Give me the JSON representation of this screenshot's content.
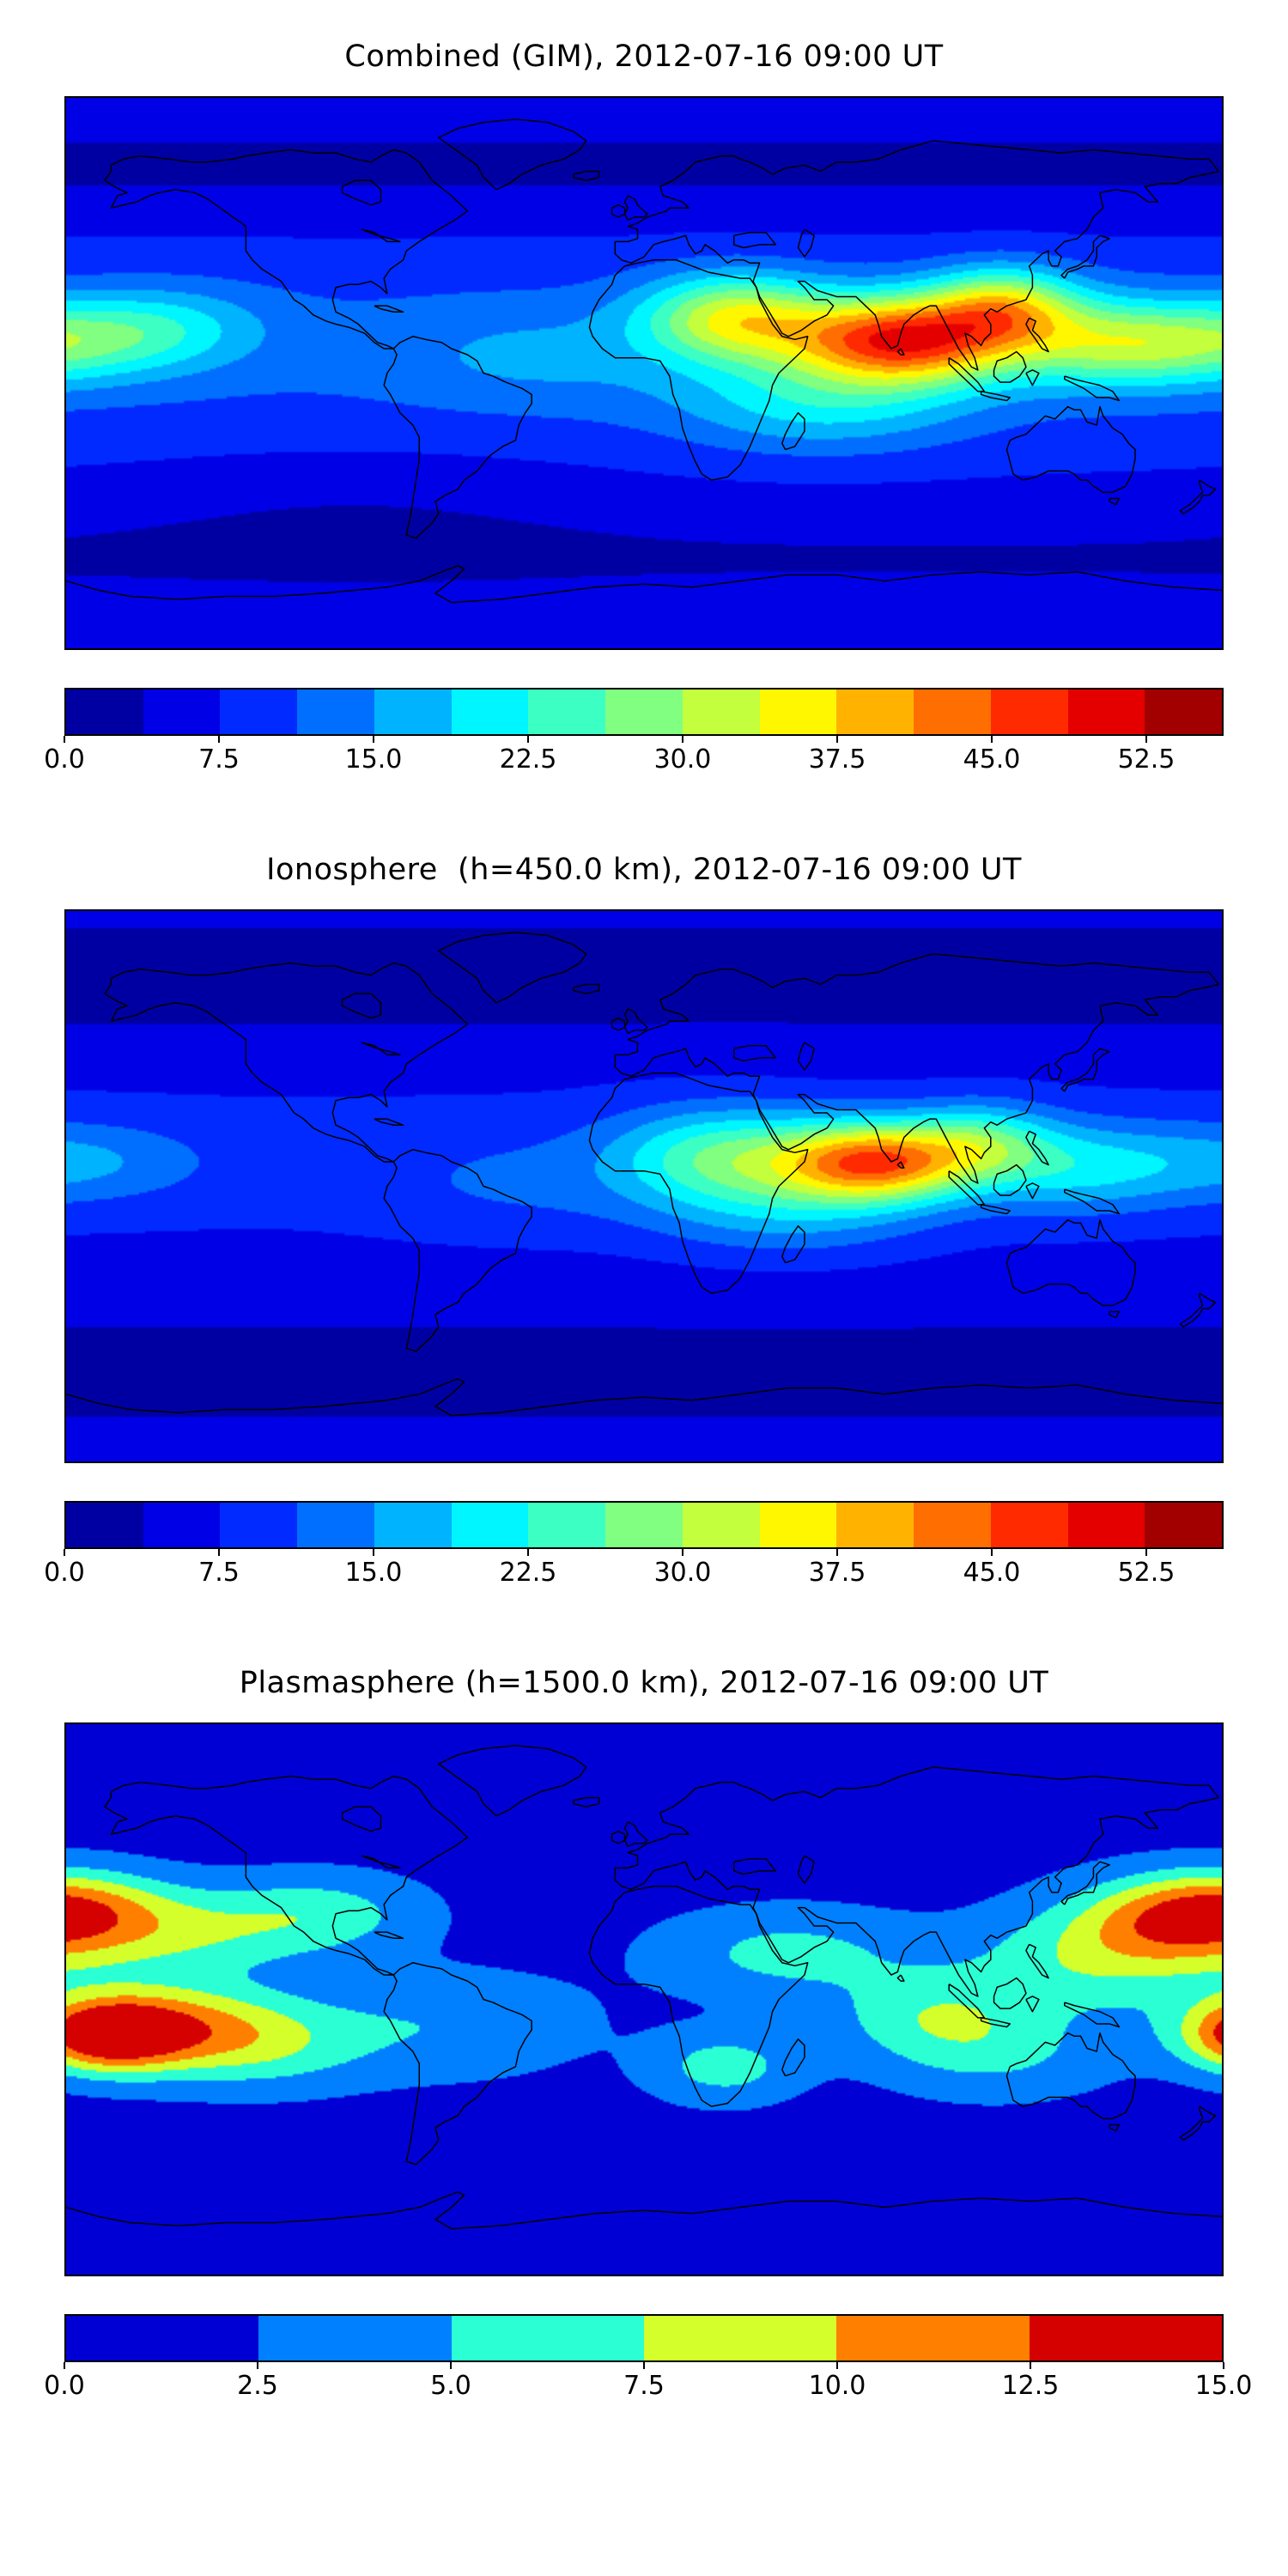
{
  "figure": {
    "background": "#ffffff",
    "frame_color": "#000000",
    "coastline_color": "#000000"
  },
  "chart_data": [
    {
      "type": "heatmap",
      "title": "Combined (GIM), 2012-07-16 09:00 UT",
      "projection": "equirectangular",
      "lon_range": [
        -180,
        180
      ],
      "lat_range": [
        -90,
        90
      ],
      "colormap": "jet",
      "coastlines": true,
      "levels": {
        "min": 0,
        "max": 56.25,
        "n": 15
      },
      "colorbar_ticks": [
        0,
        7.5,
        15,
        22.5,
        30,
        37.5,
        45,
        52.5
      ],
      "colorbar_tick_labels": [
        "0.0",
        "7.5",
        "15.0",
        "22.5",
        "30.0",
        "37.5",
        "45.0",
        "52.5"
      ],
      "field": {
        "base": 6.5,
        "features": [
          {
            "lon": null,
            "lat": 8,
            "amp": 5.5,
            "slat": 24
          },
          {
            "lon": null,
            "lat": 67,
            "amp": -3.5,
            "slat": 13
          },
          {
            "lon": null,
            "lat": -60,
            "amp": -3.0,
            "slat": 13
          },
          {
            "lon": 80,
            "lat": 11,
            "amp": 36,
            "slon": 24,
            "slat": 10
          },
          {
            "lon": 28,
            "lat": 18,
            "amp": 22,
            "slon": 20,
            "slat": 10
          },
          {
            "lon": 112,
            "lat": 22,
            "amp": 20,
            "slon": 16,
            "slat": 9
          },
          {
            "lon": 145,
            "lat": 10,
            "amp": 16,
            "slon": 24,
            "slat": 10
          },
          {
            "lon": -178,
            "lat": 10,
            "amp": 11,
            "slon": 26,
            "slat": 9
          },
          {
            "lon": -150,
            "lat": 16,
            "amp": 7,
            "slon": 22,
            "slat": 9
          },
          {
            "lon": 55,
            "lat": -10,
            "amp": 10,
            "slon": 32,
            "slat": 11
          },
          {
            "lon": -35,
            "lat": 5,
            "amp": 4,
            "slon": 30,
            "slat": 12
          },
          {
            "lon": -90,
            "lat": -42,
            "amp": -2,
            "slon": 50,
            "slat": 14
          }
        ]
      }
    },
    {
      "type": "heatmap",
      "title": "Ionosphere  (h=450.0 km), 2012-07-16 09:00 UT",
      "projection": "equirectangular",
      "lon_range": [
        -180,
        180
      ],
      "lat_range": [
        -90,
        90
      ],
      "colormap": "jet",
      "coastlines": true,
      "levels": {
        "min": 0,
        "max": 56.25,
        "n": 15
      },
      "colorbar_ticks": [
        0,
        7.5,
        15,
        22.5,
        30,
        37.5,
        45,
        52.5
      ],
      "colorbar_tick_labels": [
        "0.0",
        "7.5",
        "15.0",
        "22.5",
        "30.0",
        "37.5",
        "45.0",
        "52.5"
      ],
      "field": {
        "base": 5.0,
        "features": [
          {
            "lon": null,
            "lat": 8,
            "amp": 4.0,
            "slat": 22
          },
          {
            "lon": null,
            "lat": 67,
            "amp": -3.0,
            "slat": 13
          },
          {
            "lon": null,
            "lat": -60,
            "amp": -2.5,
            "slat": 13
          },
          {
            "lon": 72,
            "lat": 8,
            "amp": 33,
            "slon": 20,
            "slat": 9
          },
          {
            "lon": 25,
            "lat": 10,
            "amp": 16,
            "slon": 24,
            "slat": 11
          },
          {
            "lon": 105,
            "lat": 14,
            "amp": 14,
            "slon": 16,
            "slat": 9
          },
          {
            "lon": 135,
            "lat": 6,
            "amp": 10,
            "slon": 22,
            "slat": 10
          },
          {
            "lon": -178,
            "lat": 8,
            "amp": 7,
            "slon": 26,
            "slat": 9
          },
          {
            "lon": 45,
            "lat": -8,
            "amp": 8,
            "slon": 30,
            "slat": 11
          },
          {
            "lon": -40,
            "lat": 0,
            "amp": 3,
            "slon": 30,
            "slat": 12
          }
        ]
      }
    },
    {
      "type": "heatmap",
      "title": "Plasmasphere (h=1500.0 km), 2012-07-16 09:00 UT",
      "projection": "equirectangular",
      "lon_range": [
        -180,
        180
      ],
      "lat_range": [
        -90,
        90
      ],
      "colormap": "jet",
      "coastlines": true,
      "levels": {
        "min": 0,
        "max": 15,
        "n": 6
      },
      "colorbar_ticks": [
        0,
        2.5,
        5,
        7.5,
        10,
        12.5,
        15
      ],
      "colorbar_tick_labels": [
        "0.0",
        "2.5",
        "5.0",
        "7.5",
        "10.0",
        "12.5",
        "15.0"
      ],
      "field": {
        "base": 1.6,
        "features": [
          {
            "lon": -168,
            "lat": -12,
            "amp": 10.6,
            "slon": 16,
            "slat": 8
          },
          {
            "lon": -150,
            "lat": -8,
            "amp": 7.5,
            "slon": 26,
            "slat": 10
          },
          {
            "lon": -120,
            "lat": -15,
            "amp": 4.5,
            "slon": 25,
            "slat": 10
          },
          {
            "lon": -145,
            "lat": 22,
            "amp": 5.2,
            "slon": 28,
            "slat": 10
          },
          {
            "lon": -100,
            "lat": 28,
            "amp": 4.2,
            "slon": 22,
            "slat": 9
          },
          {
            "lon": 168,
            "lat": 26,
            "amp": 8.6,
            "slon": 24,
            "slat": 10
          },
          {
            "lon": 140,
            "lat": 12,
            "amp": 5.0,
            "slon": 28,
            "slat": 12
          },
          {
            "lon": 110,
            "lat": -18,
            "amp": 3.4,
            "slon": 25,
            "slat": 10
          },
          {
            "lon": 90,
            "lat": -5,
            "amp": 4.6,
            "slon": 22,
            "slat": 10
          },
          {
            "lon": 45,
            "lat": 15,
            "amp": 4.2,
            "slon": 28,
            "slat": 10
          },
          {
            "lon": 25,
            "lat": -22,
            "amp": 4.6,
            "slon": 16,
            "slat": 8
          },
          {
            "lon": -60,
            "lat": -8,
            "amp": 3.0,
            "slon": 30,
            "slat": 12
          },
          {
            "lon": -178,
            "lat": 32,
            "amp": 4.0,
            "slon": 20,
            "slat": 8
          }
        ]
      }
    }
  ]
}
